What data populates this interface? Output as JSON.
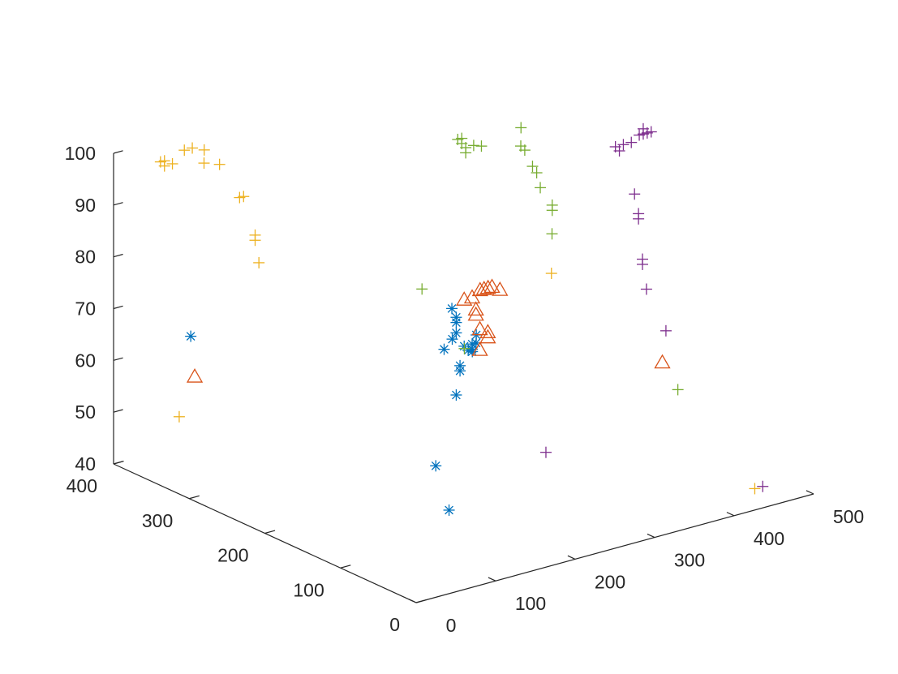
{
  "chart_data": {
    "type": "scatter",
    "title": "",
    "xlabel": "",
    "ylabel": "",
    "zlabel": "",
    "grid": false,
    "legend": null,
    "xlim": [
      0,
      500
    ],
    "ylim": [
      0,
      400
    ],
    "zlim": [
      40,
      100
    ],
    "x_ticks": [
      "0",
      "100",
      "200",
      "300",
      "400",
      "500"
    ],
    "y_ticks": [
      "0",
      "100",
      "200",
      "300",
      "400"
    ],
    "z_ticks": [
      "40",
      "50",
      "60",
      "70",
      "80",
      "90",
      "100"
    ],
    "series": [
      {
        "marker": "asterisk",
        "color": "#0072BD",
        "points": [
          [
            40,
            340,
            67
          ],
          [
            240,
            205,
            73
          ],
          [
            215,
            200,
            44
          ],
          [
            265,
            235,
            31
          ],
          [
            255,
            215,
            70
          ],
          [
            255,
            215,
            69
          ],
          [
            255,
            215,
            67
          ],
          [
            235,
            210,
            65
          ],
          [
            250,
            215,
            66
          ],
          [
            265,
            215,
            64
          ],
          [
            275,
            215,
            64
          ],
          [
            275,
            215,
            63
          ],
          [
            280,
            215,
            64
          ],
          [
            270,
            215,
            63
          ],
          [
            255,
            210,
            61
          ],
          [
            255,
            210,
            60
          ],
          [
            255,
            215,
            55
          ],
          [
            285,
            220,
            65
          ],
          [
            280,
            220,
            62
          ]
        ]
      },
      {
        "marker": "triangle",
        "color": "#D95319",
        "points": [
          [
            45,
            340,
            59
          ],
          [
            500,
            200,
            52
          ],
          [
            265,
            215,
            73
          ],
          [
            275,
            215,
            73
          ],
          [
            285,
            215,
            74
          ],
          [
            290,
            215,
            74
          ],
          [
            295,
            215,
            74
          ],
          [
            300,
            215,
            74
          ],
          [
            310,
            215,
            73
          ],
          [
            275,
            210,
            71
          ],
          [
            275,
            210,
            70
          ],
          [
            280,
            210,
            67
          ],
          [
            290,
            210,
            66
          ],
          [
            290,
            210,
            65
          ],
          [
            280,
            210,
            63
          ]
        ]
      },
      {
        "marker": "plus",
        "color": "#EDB120",
        "points": [
          [
            35,
            350,
            51
          ],
          [
            445,
            20,
            42
          ],
          [
            370,
            210,
            74
          ],
          [
            40,
            380,
            98
          ],
          [
            45,
            380,
            98
          ],
          [
            45,
            380,
            97
          ],
          [
            55,
            380,
            97
          ],
          [
            70,
            380,
            99
          ],
          [
            80,
            380,
            99
          ],
          [
            95,
            380,
            98
          ],
          [
            90,
            375,
            96
          ],
          [
            100,
            365,
            96
          ],
          [
            130,
            370,
            88
          ],
          [
            135,
            370,
            88
          ],
          [
            140,
            360,
            80
          ],
          [
            140,
            360,
            81
          ],
          [
            140,
            355,
            76
          ]
        ]
      },
      {
        "marker": "plus",
        "color": "#77AC30",
        "points": [
          [
            250,
            255,
            73
          ],
          [
            270,
            220,
            63
          ],
          [
            510,
            190,
            47
          ],
          [
            295,
            255,
            100
          ],
          [
            300,
            255,
            100
          ],
          [
            300,
            255,
            99
          ],
          [
            305,
            255,
            98
          ],
          [
            315,
            255,
            98
          ],
          [
            305,
            255,
            97
          ],
          [
            320,
            250,
            98
          ],
          [
            365,
            245,
            100
          ],
          [
            360,
            240,
            97
          ],
          [
            365,
            240,
            96
          ],
          [
            370,
            235,
            93
          ],
          [
            380,
            240,
            91
          ],
          [
            375,
            230,
            89
          ],
          [
            390,
            230,
            85
          ],
          [
            390,
            230,
            84
          ],
          [
            385,
            225,
            80
          ]
        ]
      },
      {
        "marker": "plus",
        "color": "#7E2F8E",
        "points": [
          [
            325,
            170,
            44
          ],
          [
            455,
            20,
            42
          ],
          [
            495,
            190,
            59
          ],
          [
            480,
            200,
            67
          ],
          [
            475,
            200,
            72
          ],
          [
            475,
            200,
            73
          ],
          [
            470,
            200,
            81
          ],
          [
            470,
            200,
            82
          ],
          [
            465,
            200,
            86
          ],
          [
            460,
            220,
            94
          ],
          [
            465,
            220,
            93
          ],
          [
            470,
            220,
            94
          ],
          [
            480,
            220,
            94
          ],
          [
            490,
            220,
            95
          ],
          [
            495,
            220,
            95
          ],
          [
            500,
            220,
            95
          ],
          [
            505,
            220,
            95
          ],
          [
            495,
            220,
            96
          ]
        ]
      }
    ]
  }
}
